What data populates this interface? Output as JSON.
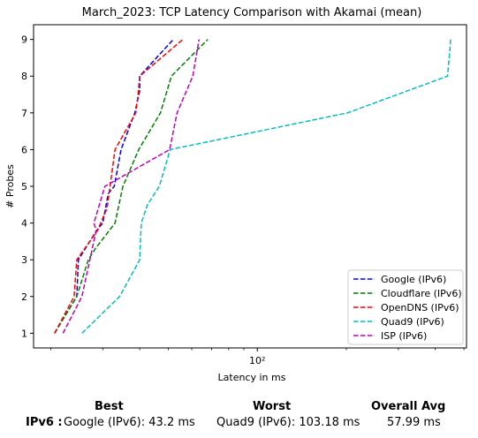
{
  "chart_data": {
    "type": "line",
    "title": "March_2023: TCP Latency Comparison with Akamai (mean)",
    "xlabel": "Latency in ms",
    "ylabel": "# Probes",
    "xscale": "log",
    "xlim": [
      17.5,
      510
    ],
    "ylim": [
      0.6,
      9.4
    ],
    "x_ticks": [
      {
        "value": 100,
        "label": "10²"
      }
    ],
    "y_ticks": [
      1,
      2,
      3,
      4,
      5,
      6,
      7,
      8,
      9
    ],
    "y_tick_labels": [
      "1",
      "2",
      "3",
      "4",
      "5",
      "6",
      "7",
      "8",
      "9"
    ],
    "grid": false,
    "legend_position": "lower right",
    "series": [
      {
        "name": "Google (IPv6)",
        "color": "#0000ff",
        "dash": "dashed",
        "x": [
          20.6,
          24.5,
          24.8,
          28.6,
          30.0,
          31.3,
          32.8,
          34.6,
          38.5,
          40.0,
          40.0,
          52.0
        ],
        "y": [
          1,
          2,
          3,
          3.8,
          4,
          4.8,
          5,
          6,
          7,
          7.6,
          8,
          9
        ]
      },
      {
        "name": "Cloudflare (IPv6)",
        "color": "#008000",
        "dash": "dashed",
        "x": [
          20.6,
          24.5,
          26.8,
          28.3,
          33.0,
          35.1,
          39.7,
          47.0,
          51.2,
          68.0
        ],
        "y": [
          1,
          2,
          3,
          3.3,
          4,
          5,
          6,
          7,
          8,
          9
        ]
      },
      {
        "name": "OpenDNS (IPv6)",
        "color": "#ff0000",
        "dash": "dashed",
        "x": [
          20.6,
          24.0,
          24.5,
          28.8,
          31.0,
          33.0,
          38.8,
          39.5,
          40.0,
          56.0
        ],
        "y": [
          1,
          2,
          3,
          3.8,
          4.4,
          6,
          7,
          7.5,
          8,
          9
        ]
      },
      {
        "name": "Quad9 (IPv6)",
        "color": "#00bfbf",
        "dash": "dashed",
        "x": [
          25.5,
          34.2,
          40.0,
          40.5,
          42.5,
          46.6,
          50.7,
          202.0,
          440.0,
          449.0,
          450.0
        ],
        "y": [
          1,
          2,
          3,
          4,
          4.5,
          5,
          6,
          7,
          8,
          8.8,
          9
        ]
      },
      {
        "name": "ISP (IPv6)",
        "color": "#bf00bf",
        "dash": "dashed",
        "x": [
          22.0,
          25.5,
          28.5,
          28.0,
          30.5,
          50.5,
          53.5,
          60.5,
          63.5
        ],
        "y": [
          1,
          2,
          3.8,
          4,
          5,
          6,
          7,
          8,
          9
        ]
      }
    ]
  },
  "summary": {
    "headers": {
      "best": "Best",
      "worst": "Worst",
      "avg": "Overall Avg"
    },
    "row_label": "IPv6 :",
    "best": "Google (IPv6): 43.2 ms",
    "worst": "Quad9 (IPv6): 103.18 ms",
    "avg": "57.99 ms"
  }
}
